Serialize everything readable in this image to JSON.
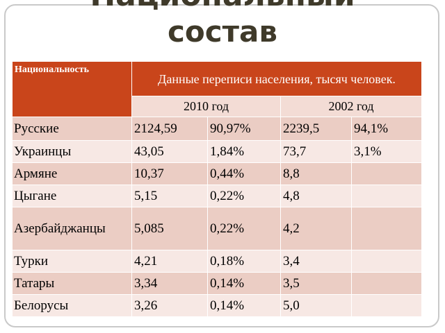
{
  "title_top": "Национальный",
  "title_main": "состав",
  "table": {
    "header_nationality": "Национальность",
    "header_census": "Данные переписи населения, тысяч человек.",
    "year_2010": "2010 год",
    "year_2002": "2002 год",
    "rows": [
      {
        "name": "Русские",
        "v2010": "2124,59",
        "p2010": "90,97%",
        "v2002": "2239,5",
        "p2002": "94,1%"
      },
      {
        "name": "Украинцы",
        "v2010": "43,05",
        "p2010": "1,84%",
        "v2002": "73,7",
        "p2002": "3,1%"
      },
      {
        "name": "Армяне",
        "v2010": "10,37",
        "p2010": "0,44%",
        "v2002": "8,8",
        "p2002": ""
      },
      {
        "name": "Цыгане",
        "v2010": "5,15",
        "p2010": "0,22%",
        "v2002": "4,8",
        "p2002": ""
      },
      {
        "name": "Азербайджанцы",
        "v2010": "5,085",
        "p2010": "0,22%",
        "v2002": "4,2",
        "p2002": ""
      },
      {
        "name": "Турки",
        "v2010": "4,21",
        "p2010": "0,18%",
        "v2002": "3,4",
        "p2002": ""
      },
      {
        "name": "Татары",
        "v2010": "3,34",
        "p2010": "0,14%",
        "v2002": "3,5",
        "p2002": ""
      },
      {
        "name": "Белорусы",
        "v2010": "3,26",
        "p2010": "0,14%",
        "v2002": "5,0",
        "p2002": ""
      }
    ]
  }
}
